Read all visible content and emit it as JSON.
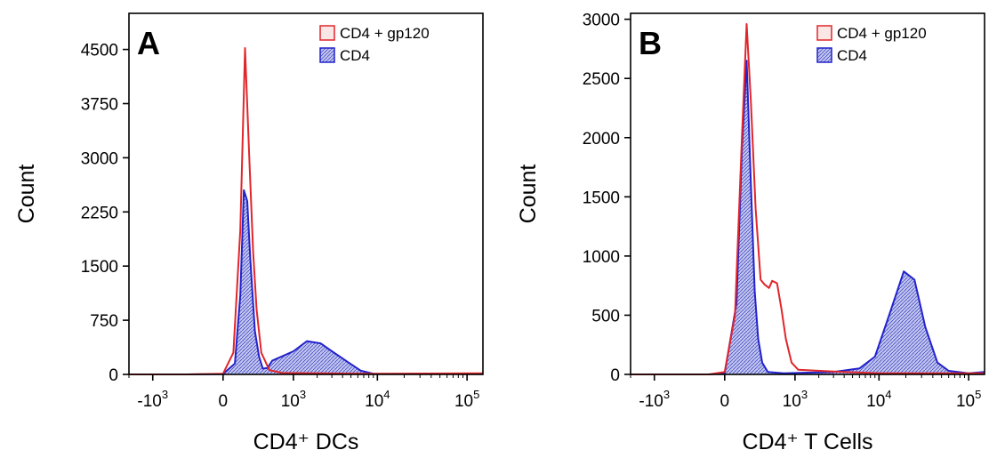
{
  "chart_data": [
    {
      "type": "area",
      "panel_label": "A",
      "xlabel": "CD4⁺ DCs",
      "ylabel": "Count",
      "x_scale": "biexponential",
      "x_ticks": [
        {
          "value": -1000,
          "label_base": "-10",
          "label_exp": "3"
        },
        {
          "value": 0,
          "label_base": "0",
          "label_exp": ""
        },
        {
          "value": 1000,
          "label_base": "10",
          "label_exp": "3"
        },
        {
          "value": 10000,
          "label_base": "10",
          "label_exp": "4"
        },
        {
          "value": 100000,
          "label_base": "10",
          "label_exp": "5"
        }
      ],
      "xlim": [
        -2000,
        150000
      ],
      "ylim": [
        0,
        5000
      ],
      "y_ticks": [
        0,
        750,
        1500,
        2250,
        3000,
        3750,
        4500
      ],
      "legend_position": "top-right",
      "series": [
        {
          "name": "CD4 + gp120",
          "color": "#e0262b",
          "fill": "none",
          "points": [
            [
              -2000,
              0
            ],
            [
              -300,
              0
            ],
            [
              0,
              10
            ],
            [
              60,
              300
            ],
            [
              110,
              2000
            ],
            [
              150,
              4520
            ],
            [
              190,
              3000
            ],
            [
              230,
              1700
            ],
            [
              270,
              900
            ],
            [
              330,
              300
            ],
            [
              450,
              60
            ],
            [
              700,
              20
            ],
            [
              2000,
              15
            ],
            [
              10000,
              10
            ],
            [
              150000,
              15
            ]
          ]
        },
        {
          "name": "CD4",
          "color": "#2222cc",
          "fill": "hatched-blue",
          "points": [
            [
              -2000,
              0
            ],
            [
              -300,
              0
            ],
            [
              0,
              5
            ],
            [
              70,
              150
            ],
            [
              110,
              1100
            ],
            [
              140,
              2550
            ],
            [
              170,
              2400
            ],
            [
              200,
              1600
            ],
            [
              250,
              600
            ],
            [
              300,
              250
            ],
            [
              350,
              80
            ],
            [
              420,
              90
            ],
            [
              500,
              190
            ],
            [
              700,
              250
            ],
            [
              1000,
              320
            ],
            [
              1500,
              460
            ],
            [
              2200,
              430
            ],
            [
              3000,
              320
            ],
            [
              4500,
              180
            ],
            [
              6500,
              50
            ],
            [
              9000,
              10
            ],
            [
              150000,
              5
            ]
          ]
        }
      ]
    },
    {
      "type": "area",
      "panel_label": "B",
      "xlabel": "CD4⁺ T Cells",
      "ylabel": "Count",
      "x_scale": "biexponential",
      "x_ticks": [
        {
          "value": -1000,
          "label_base": "-10",
          "label_exp": "3"
        },
        {
          "value": 0,
          "label_base": "0",
          "label_exp": ""
        },
        {
          "value": 1000,
          "label_base": "10",
          "label_exp": "3"
        },
        {
          "value": 10000,
          "label_base": "10",
          "label_exp": "4"
        },
        {
          "value": 100000,
          "label_base": "10",
          "label_exp": "5"
        }
      ],
      "xlim": [
        -2000,
        150000
      ],
      "ylim": [
        0,
        3050
      ],
      "y_ticks": [
        0,
        500,
        1000,
        1500,
        2000,
        2500,
        3000
      ],
      "legend_position": "top-right",
      "series": [
        {
          "name": "CD4 + gp120",
          "color": "#e0262b",
          "fill": "none",
          "points": [
            [
              -2000,
              0
            ],
            [
              -100,
              0
            ],
            [
              0,
              20
            ],
            [
              60,
              500
            ],
            [
              110,
              2000
            ],
            [
              150,
              2960
            ],
            [
              190,
              2300
            ],
            [
              240,
              1400
            ],
            [
              300,
              800
            ],
            [
              350,
              760
            ],
            [
              420,
              730
            ],
            [
              470,
              790
            ],
            [
              560,
              770
            ],
            [
              650,
              550
            ],
            [
              750,
              300
            ],
            [
              900,
              100
            ],
            [
              1100,
              40
            ],
            [
              3000,
              25
            ],
            [
              10000,
              10
            ],
            [
              150000,
              10
            ]
          ]
        },
        {
          "name": "CD4",
          "color": "#2222cc",
          "fill": "hatched-blue",
          "points": [
            [
              -2000,
              0
            ],
            [
              -100,
              0
            ],
            [
              0,
              10
            ],
            [
              70,
              600
            ],
            [
              110,
              1900
            ],
            [
              150,
              2650
            ],
            [
              190,
              1600
            ],
            [
              230,
              700
            ],
            [
              270,
              300
            ],
            [
              320,
              100
            ],
            [
              400,
              20
            ],
            [
              700,
              10
            ],
            [
              1500,
              15
            ],
            [
              3000,
              20
            ],
            [
              6000,
              50
            ],
            [
              9000,
              150
            ],
            [
              13000,
              500
            ],
            [
              19000,
              870
            ],
            [
              25000,
              800
            ],
            [
              33000,
              400
            ],
            [
              45000,
              100
            ],
            [
              60000,
              30
            ],
            [
              100000,
              10
            ],
            [
              150000,
              20
            ]
          ]
        }
      ]
    }
  ]
}
